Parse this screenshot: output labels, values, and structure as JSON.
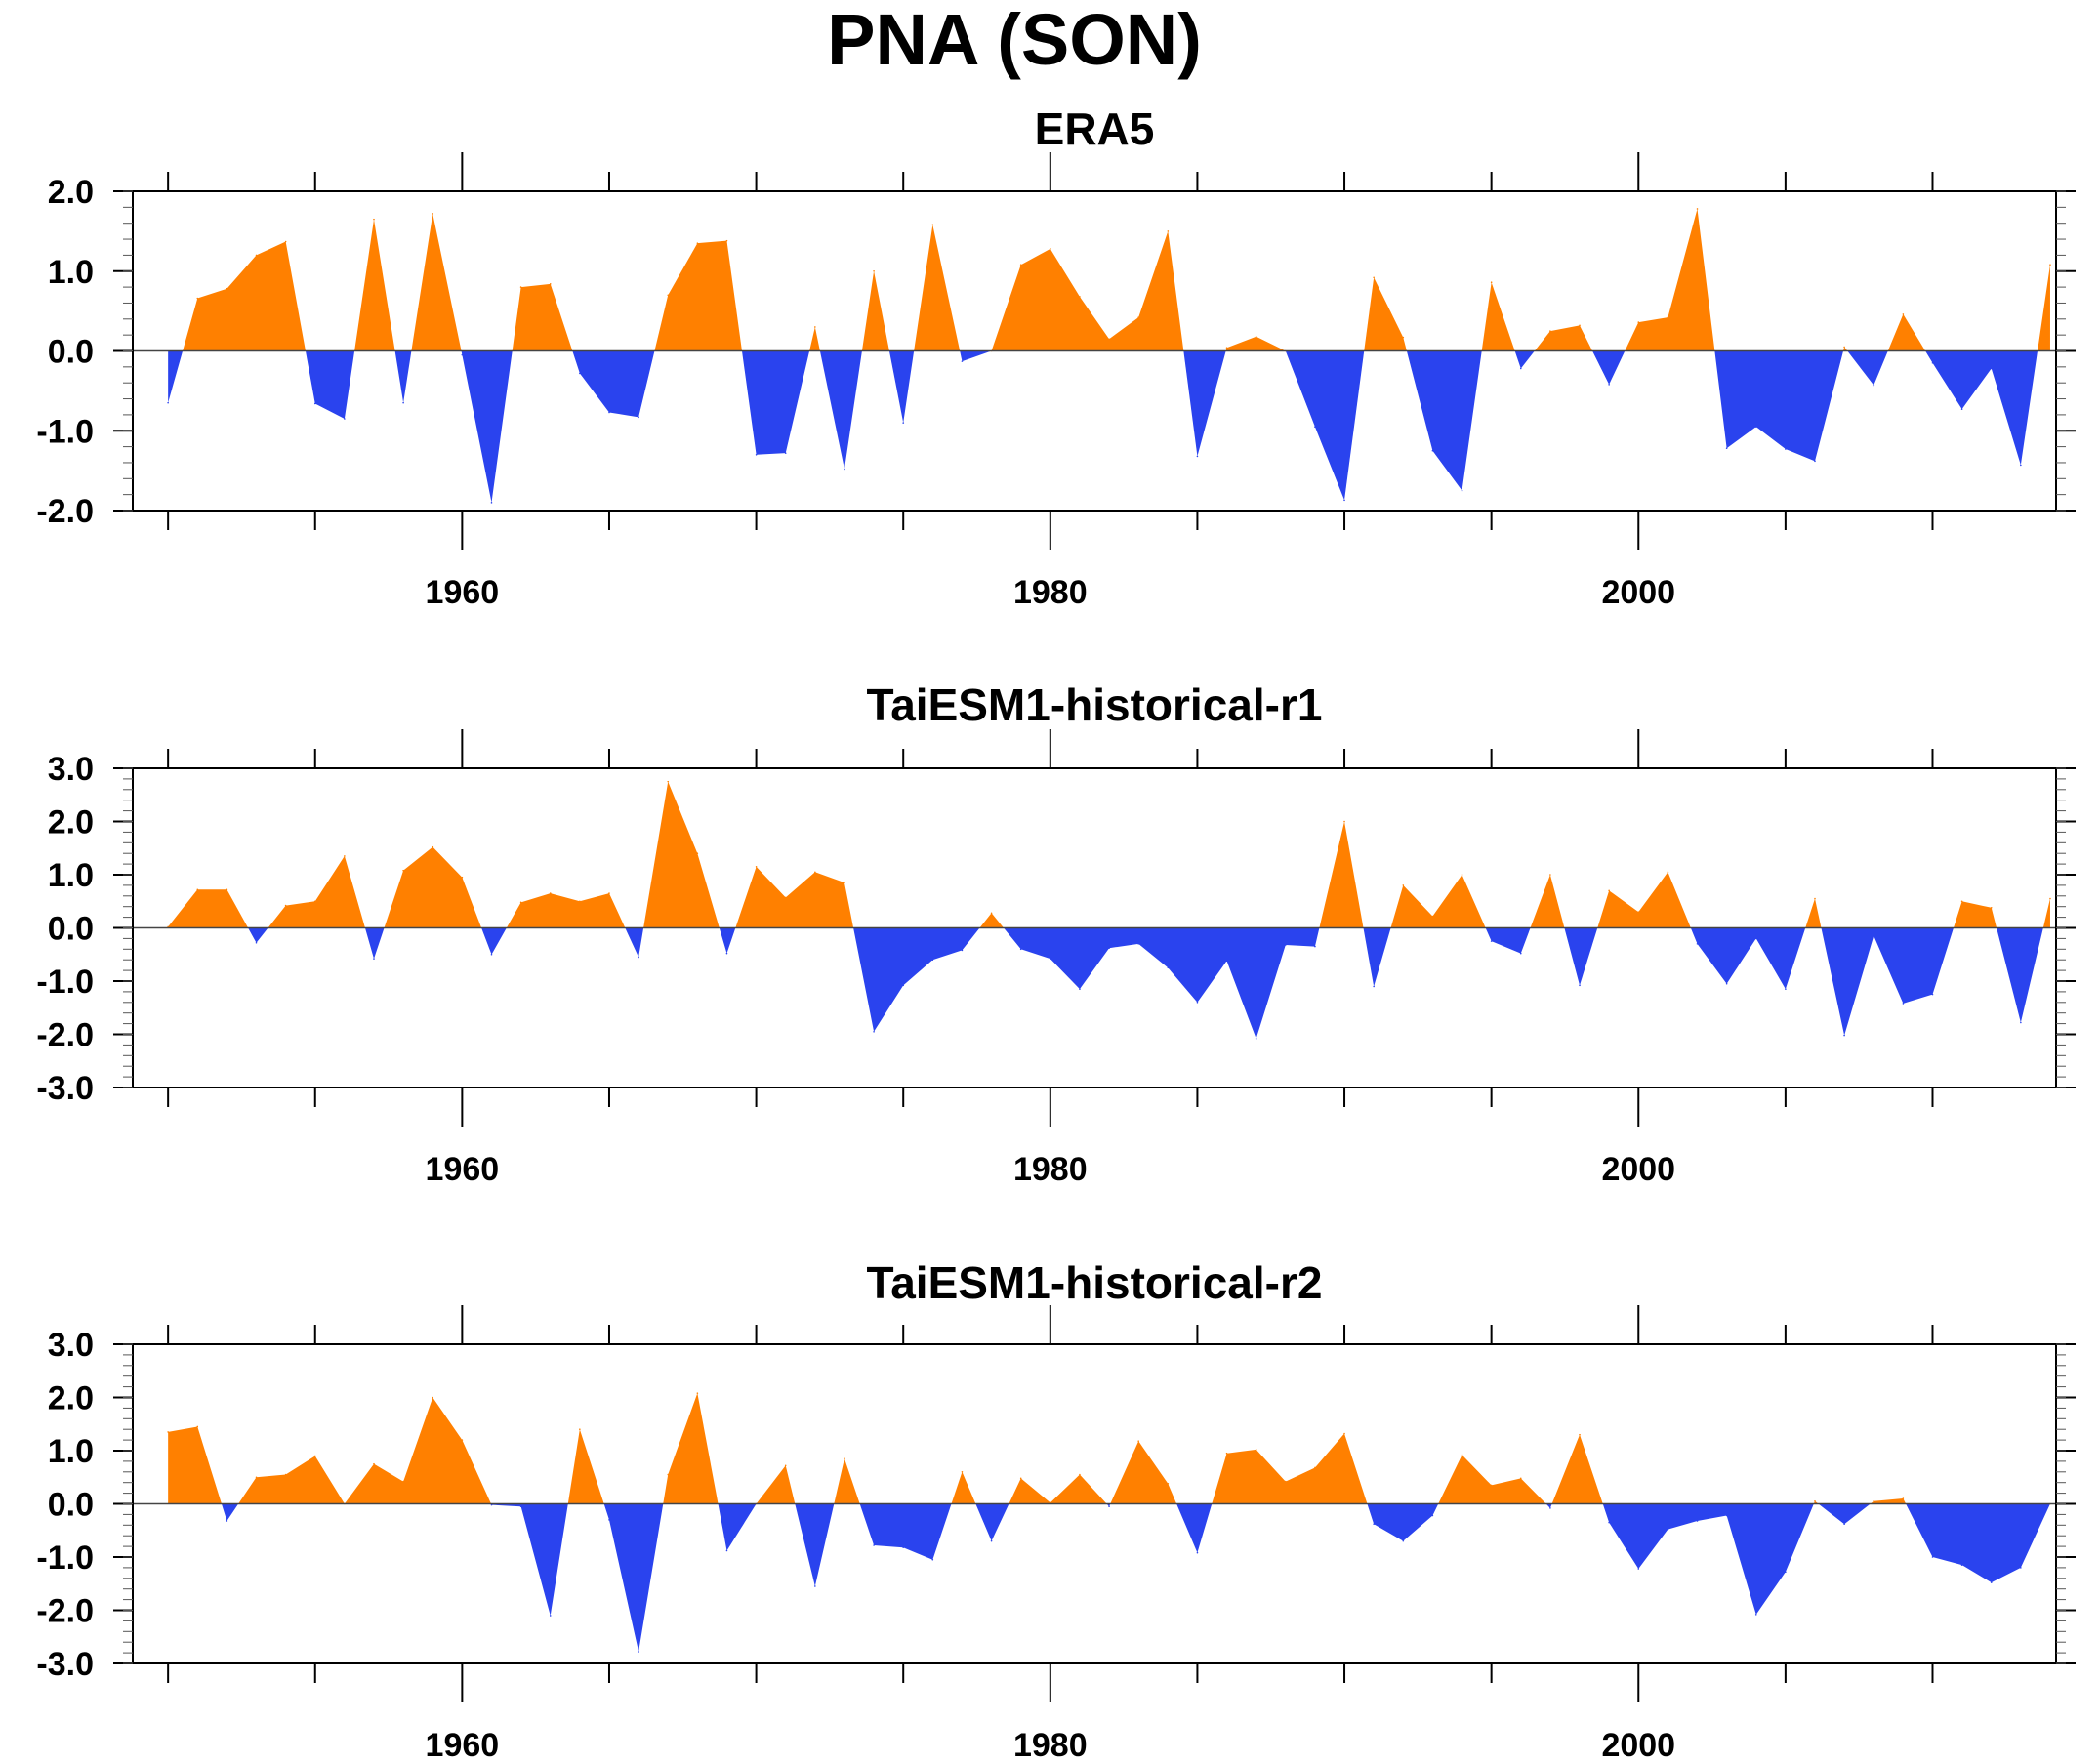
{
  "title": "PNA (SON)",
  "colors": {
    "positive": "#ff8000",
    "negative": "#2a43ee",
    "axis": "#000000"
  },
  "chart_data": [
    {
      "type": "area",
      "title": "ERA5",
      "xlabel": "",
      "ylabel": "",
      "xlim": [
        1948.8,
        2014.2
      ],
      "ylim": [
        -2.0,
        2.0
      ],
      "yticks": [
        "2.0",
        "1.0",
        "0.0",
        "-1.0",
        "-2.0"
      ],
      "xticks": [
        "1960",
        "1980",
        "2000"
      ],
      "years": [
        1950,
        1951,
        1952,
        1953,
        1954,
        1955,
        1956,
        1957,
        1958,
        1959,
        1960,
        1961,
        1962,
        1963,
        1964,
        1965,
        1966,
        1967,
        1968,
        1969,
        1970,
        1971,
        1972,
        1973,
        1974,
        1975,
        1976,
        1977,
        1978,
        1979,
        1980,
        1981,
        1982,
        1983,
        1984,
        1985,
        1986,
        1987,
        1988,
        1989,
        1990,
        1991,
        1992,
        1993,
        1994,
        1995,
        1996,
        1997,
        1998,
        1999,
        2000,
        2001,
        2002,
        2003,
        2004,
        2005,
        2006,
        2007,
        2008,
        2009,
        2010,
        2011,
        2012,
        2013,
        2014
      ],
      "values": [
        -0.65,
        0.66,
        0.78,
        1.2,
        1.37,
        -0.66,
        -0.85,
        1.65,
        -0.65,
        1.72,
        -0.05,
        -1.9,
        0.8,
        0.84,
        -0.28,
        -0.77,
        -0.83,
        0.7,
        1.35,
        1.38,
        -1.3,
        -1.28,
        0.3,
        -1.48,
        1.0,
        -0.9,
        1.58,
        -0.13,
        0.0,
        1.08,
        1.28,
        0.68,
        0.15,
        0.42,
        1.5,
        -1.32,
        0.04,
        0.18,
        0.0,
        -0.95,
        -1.87,
        0.92,
        0.17,
        -1.25,
        -1.75,
        0.86,
        -0.22,
        0.25,
        0.32,
        -0.42,
        0.36,
        0.42,
        1.78,
        -1.22,
        -0.95,
        -1.23,
        -1.38,
        0.05,
        -0.43,
        0.46,
        -0.15,
        -0.73,
        -0.22,
        -1.43,
        1.08
      ]
    },
    {
      "type": "area",
      "title": "TaiESM1-historical-r1",
      "xlabel": "",
      "ylabel": "",
      "xlim": [
        1948.8,
        2014.2
      ],
      "ylim": [
        -3.0,
        3.0
      ],
      "yticks": [
        "3.0",
        "2.0",
        "1.0",
        "0.0",
        "-1.0",
        "-2.0",
        "-3.0"
      ],
      "xticks": [
        "1960",
        "1980",
        "2000"
      ],
      "years": [
        1950,
        1951,
        1952,
        1953,
        1954,
        1955,
        1956,
        1957,
        1958,
        1959,
        1960,
        1961,
        1962,
        1963,
        1964,
        1965,
        1966,
        1967,
        1968,
        1969,
        1970,
        1971,
        1972,
        1973,
        1974,
        1975,
        1976,
        1977,
        1978,
        1979,
        1980,
        1981,
        1982,
        1983,
        1984,
        1985,
        1986,
        1987,
        1988,
        1989,
        1990,
        1991,
        1992,
        1993,
        1994,
        1995,
        1996,
        1997,
        1998,
        1999,
        2000,
        2001,
        2002,
        2003,
        2004,
        2005,
        2006,
        2007,
        2008,
        2009,
        2010,
        2011,
        2012,
        2013,
        2014
      ],
      "values": [
        0.02,
        0.72,
        0.72,
        -0.28,
        0.42,
        0.5,
        1.35,
        -0.58,
        1.08,
        1.52,
        0.95,
        -0.5,
        0.48,
        0.65,
        0.5,
        0.65,
        -0.55,
        2.75,
        1.4,
        -0.48,
        1.15,
        0.57,
        1.05,
        0.85,
        -1.95,
        -1.08,
        -0.6,
        -0.42,
        0.28,
        -0.4,
        -0.58,
        -1.15,
        -0.38,
        -0.3,
        -0.75,
        -1.4,
        -0.62,
        -2.08,
        -0.32,
        -0.35,
        2.0,
        -1.1,
        0.8,
        0.22,
        1.0,
        -0.25,
        -0.48,
        1.0,
        -1.08,
        0.7,
        0.3,
        1.05,
        -0.3,
        -1.05,
        -0.2,
        -1.15,
        0.55,
        -2.02,
        -0.15,
        -1.42,
        -1.25,
        0.5,
        0.38,
        -1.78,
        0.55
      ]
    },
    {
      "type": "area",
      "title": "TaiESM1-historical-r2",
      "xlabel": "",
      "ylabel": "",
      "xlim": [
        1948.8,
        2014.2
      ],
      "ylim": [
        -3.0,
        3.0
      ],
      "yticks": [
        "3.0",
        "2.0",
        "1.0",
        "0.0",
        "-1.0",
        "-2.0",
        "-3.0"
      ],
      "xticks": [
        "1960",
        "1980",
        "2000"
      ],
      "years": [
        1950,
        1951,
        1952,
        1953,
        1954,
        1955,
        1956,
        1957,
        1958,
        1959,
        1960,
        1961,
        1962,
        1963,
        1964,
        1965,
        1966,
        1967,
        1968,
        1969,
        1970,
        1971,
        1972,
        1973,
        1974,
        1975,
        1976,
        1977,
        1978,
        1979,
        1980,
        1981,
        1982,
        1983,
        1984,
        1985,
        1986,
        1987,
        1988,
        1989,
        1990,
        1991,
        1992,
        1993,
        1994,
        1995,
        1996,
        1997,
        1998,
        1999,
        2000,
        2001,
        2002,
        2003,
        2004,
        2005,
        2006,
        2007,
        2008,
        2009,
        2010,
        2011,
        2012,
        2013,
        2014
      ],
      "values": [
        1.35,
        1.45,
        -0.32,
        0.5,
        0.55,
        0.9,
        0.0,
        0.75,
        0.42,
        2.0,
        1.2,
        -0.02,
        -0.05,
        -2.1,
        1.4,
        -0.3,
        -2.78,
        0.55,
        2.08,
        -0.88,
        0.0,
        0.72,
        -1.55,
        0.85,
        -0.78,
        -0.82,
        -1.05,
        0.6,
        -0.7,
        0.48,
        0.02,
        0.55,
        -0.05,
        1.18,
        0.38,
        -0.92,
        0.95,
        1.02,
        0.42,
        0.68,
        1.32,
        -0.38,
        -0.7,
        -0.22,
        0.92,
        0.35,
        0.48,
        -0.08,
        1.3,
        -0.35,
        -1.22,
        -0.48,
        -0.32,
        -0.22,
        -2.08,
        -1.28,
        0.05,
        -0.38,
        0.05,
        0.1,
        -1.0,
        -1.15,
        -1.48,
        -1.2,
        0.0
      ]
    }
  ]
}
